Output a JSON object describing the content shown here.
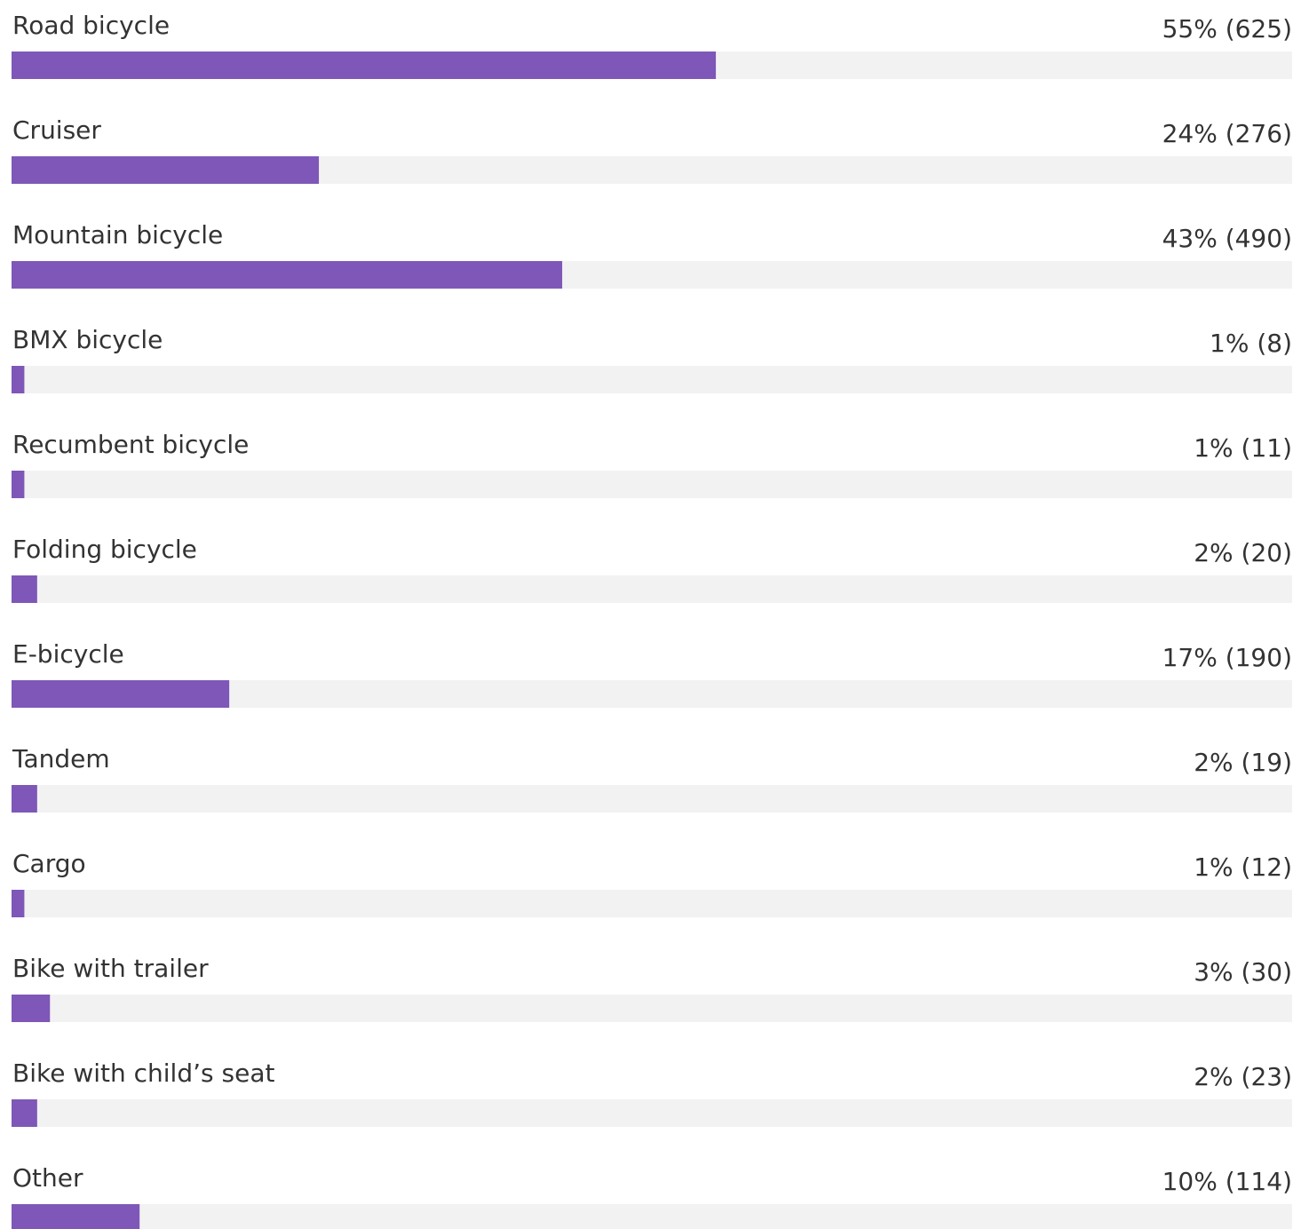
{
  "chart_data": {
    "type": "bar",
    "orientation": "horizontal",
    "categories": [
      "Road bicycle",
      "Cruiser",
      "Mountain bicycle",
      "BMX bicycle",
      "Recumbent bicycle",
      "Folding bicycle",
      "E-bicycle",
      "Tandem",
      "Cargo",
      "Bike with trailer",
      "Bike with child’s seat",
      "Other"
    ],
    "values": [
      55,
      24,
      43,
      1,
      1,
      2,
      17,
      2,
      1,
      3,
      2,
      10
    ],
    "value_labels": [
      "55% (625)",
      "24% (276)",
      "43% (490)",
      "1% (8)",
      "1% (11)",
      "2% (20)",
      "17% (190)",
      "2% (19)",
      "1% (12)",
      "3% (30)",
      "2% (23)",
      "10% (114)"
    ],
    "color": "#7e57b8",
    "track_color": "#f2f2f2",
    "xlim": [
      0,
      100
    ]
  }
}
